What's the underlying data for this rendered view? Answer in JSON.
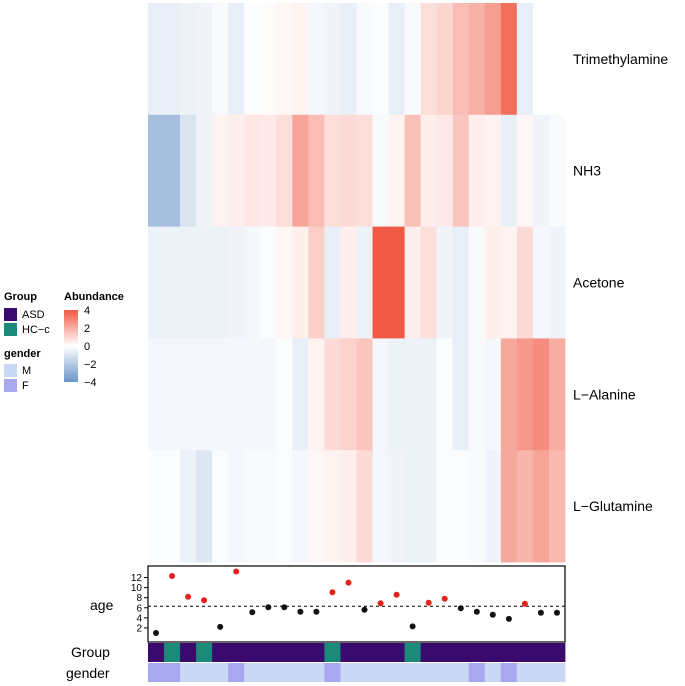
{
  "chart_data": {
    "type": "heatmap",
    "rows": [
      "Trimethylamine",
      "NH3",
      "Acetone",
      "L−Alanine",
      "L−Glutamine"
    ],
    "values": [
      [
        -0.6,
        -0.6,
        -0.5,
        -0.4,
        -0.2,
        -0.6,
        -0.1,
        0.1,
        0.2,
        0.3,
        -0.3,
        -0.4,
        -0.6,
        -0.2,
        -0.1,
        -0.6,
        -0.2,
        0.8,
        1.0,
        1.6,
        1.9,
        2.3,
        3.5,
        -0.6,
        0,
        0
      ],
      [
        -2.4,
        -2.4,
        -1.0,
        -0.4,
        0.3,
        0.4,
        0.6,
        0.5,
        0.8,
        2.2,
        1.6,
        0.8,
        0.9,
        0.8,
        -0.2,
        0.3,
        1.5,
        0.4,
        0.5,
        1.4,
        0.4,
        0.3,
        -0.6,
        0.2,
        -0.4,
        -0.2
      ],
      [
        -0.5,
        -0.5,
        -0.5,
        -0.5,
        -0.5,
        -0.4,
        -0.3,
        -0.1,
        0.2,
        0.4,
        1.2,
        -0.6,
        0.4,
        -0.5,
        4.0,
        4.0,
        0.4,
        0.8,
        -0.4,
        -0.6,
        -0.2,
        0.4,
        0.3,
        0.9,
        -0.3,
        -0.4
      ],
      [
        -0.3,
        -0.3,
        -0.3,
        -0.3,
        -0.3,
        -0.3,
        -0.3,
        -0.3,
        -0.1,
        -0.6,
        0.3,
        0.9,
        1.1,
        1.4,
        -0.3,
        -0.5,
        -0.5,
        -0.5,
        -0.1,
        -0.6,
        -0.2,
        -0.3,
        2.1,
        2.5,
        2.8,
        2.0
      ],
      [
        -0.1,
        -0.1,
        -0.5,
        -0.9,
        -0.1,
        -0.3,
        -0.2,
        -0.2,
        -0.1,
        -0.3,
        0.2,
        0.3,
        0.4,
        0.9,
        -0.3,
        -0.4,
        -0.5,
        -0.5,
        -0.1,
        -0.1,
        -0.2,
        -0.4,
        2.1,
        1.8,
        2.2,
        1.7
      ]
    ],
    "age": [
      1,
      12.3,
      8.2,
      7.5,
      2.2,
      13.2,
      5.1,
      6.1,
      6.1,
      5.2,
      5.2,
      9.1,
      11,
      5.6,
      6.9,
      8.6,
      2.3,
      7,
      7.8,
      5.9,
      5.2,
      4.6,
      3.8,
      6.8,
      5,
      5
    ],
    "age_threshold": 6.3,
    "age_ylim": [
      0,
      13.5
    ],
    "age_ticks": [
      "2",
      "4",
      "6",
      "8",
      "10",
      "12"
    ],
    "age_label": "age",
    "group": [
      "ASD",
      "HC-c",
      "ASD",
      "HC-c",
      "ASD",
      "ASD",
      "ASD",
      "ASD",
      "ASD",
      "ASD",
      "ASD",
      "HC-c",
      "ASD",
      "ASD",
      "ASD",
      "ASD",
      "HC-c",
      "ASD",
      "ASD",
      "ASD",
      "ASD",
      "ASD",
      "ASD",
      "ASD",
      "ASD",
      "ASD"
    ],
    "group_label": "Group",
    "gender": [
      "F",
      "F",
      "M",
      "M",
      "M",
      "F",
      "M",
      "M",
      "M",
      "M",
      "M",
      "F",
      "M",
      "M",
      "M",
      "M",
      "M",
      "M",
      "M",
      "M",
      "F",
      "M",
      "F",
      "M",
      "M",
      "M"
    ],
    "gender_label": "gender",
    "legend": {
      "group_title": "Group",
      "group_entries": [
        {
          "label": "ASD",
          "color": "#3b0a6e"
        },
        {
          "label": "HC−c",
          "color": "#1c8a78"
        }
      ],
      "gender_title": "gender",
      "gender_entries": [
        {
          "label": "M",
          "color": "#c8d8f5"
        },
        {
          "label": "F",
          "color": "#a8a8ee"
        }
      ],
      "abundance_title": "Abundance",
      "abundance_ticks": [
        "4",
        "2",
        "0",
        "−2",
        "−4"
      ]
    },
    "colors": {
      "high": "#f05a45",
      "mid": "#ffffff",
      "low": "#6a95c8",
      "above_threshold": "#e8201a",
      "below_threshold": "#111111"
    }
  }
}
